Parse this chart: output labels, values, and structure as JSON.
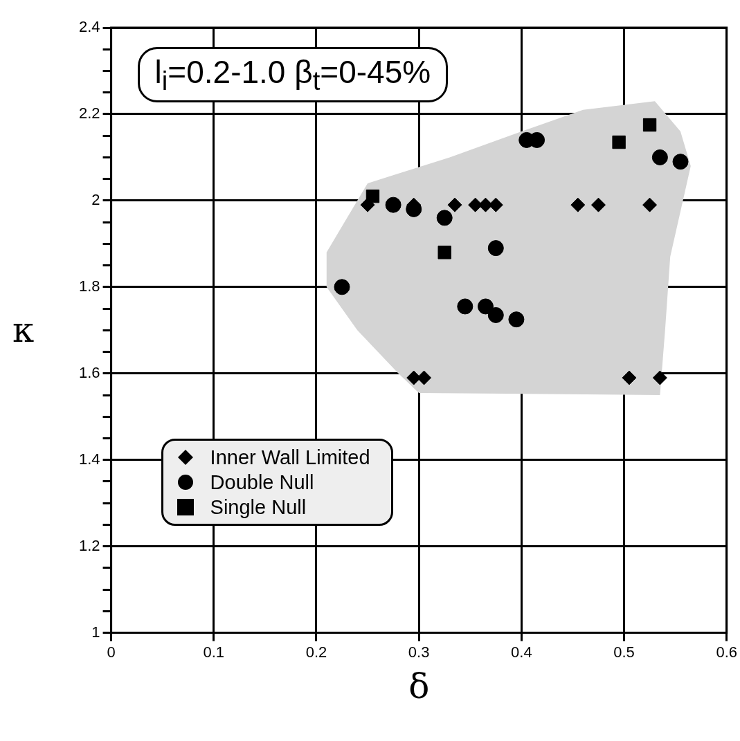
{
  "chart_data": {
    "type": "scatter",
    "title": "l$_{i}$=0.2-1.0  β$_{t}$=0-45%",
    "xlabel": "δ",
    "ylabel": "κ",
    "xlim": [
      0,
      0.6
    ],
    "xticks": [
      0,
      0.1,
      0.2,
      0.3,
      0.4,
      0.5,
      0.6
    ],
    "ylim": [
      1.0,
      2.4
    ],
    "yticks": [
      1.0,
      {
        "value": 1.05,
        "label": null
      },
      {
        "value": 1.1,
        "label": null
      },
      {
        "value": 1.15,
        "label": null
      },
      1.2,
      {
        "value": 1.25,
        "label": null
      },
      {
        "value": 1.3,
        "label": null
      },
      {
        "value": 1.35,
        "label": null
      },
      1.4,
      {
        "value": 1.45,
        "label": null
      },
      {
        "value": 1.5,
        "label": null
      },
      {
        "value": 1.55,
        "label": null
      },
      1.6,
      {
        "value": 1.65,
        "label": null
      },
      {
        "value": 1.7,
        "label": null
      },
      {
        "value": 1.75,
        "label": null
      },
      1.8,
      {
        "value": 1.85,
        "label": null
      },
      {
        "value": 1.9,
        "label": null
      },
      {
        "value": 1.95,
        "label": null
      },
      2.0,
      {
        "value": 2.05,
        "label": null
      },
      {
        "value": 2.1,
        "label": null
      },
      {
        "value": 2.15,
        "label": null
      },
      2.2,
      {
        "value": 2.25,
        "label": null
      },
      {
        "value": 2.3,
        "label": null
      },
      {
        "value": 2.35,
        "label": null
      },
      2.4
    ],
    "grid": true,
    "legend": "bottom left",
    "series": [
      {
        "type": "area",
        "color": "#d4d4d4",
        "x": [
          0.25,
          0.33,
          0.4,
          0.46,
          0.53,
          0.555,
          0.565,
          0.545,
          0.54,
          0.535,
          0.3,
          0.28,
          0.24,
          0.21,
          0.21,
          0.23
        ],
        "values": [
          2.04,
          2.1,
          2.16,
          2.21,
          2.23,
          2.16,
          2.08,
          1.87,
          1.7,
          1.55,
          1.555,
          1.6,
          1.7,
          1.8,
          1.88,
          1.96
        ]
      },
      {
        "name": "Inner Wall Limited",
        "color": "#000000",
        "marker": "diamond",
        "x": [
          0.25,
          0.295,
          0.335,
          0.355,
          0.365,
          0.375,
          0.455,
          0.475,
          0.525,
          0.295,
          0.305,
          0.505,
          0.535
        ],
        "values": [
          1.99,
          1.99,
          1.99,
          1.99,
          1.99,
          1.99,
          1.99,
          1.99,
          1.99,
          1.59,
          1.59,
          1.59,
          1.59
        ]
      },
      {
        "name": "Double Null",
        "color": "#000000",
        "marker": "circle",
        "x": [
          0.275,
          0.295,
          0.325,
          0.375,
          0.225,
          0.345,
          0.365,
          0.375,
          0.395,
          0.405,
          0.415,
          0.535,
          0.555
        ],
        "values": [
          1.99,
          1.98,
          1.96,
          1.89,
          1.8,
          1.755,
          1.755,
          1.735,
          1.725,
          2.14,
          2.14,
          2.1,
          2.09
        ]
      },
      {
        "name": "Single Null",
        "color": "#000000",
        "marker": "square",
        "x": [
          0.255,
          0.325,
          0.495,
          0.525
        ],
        "values": [
          2.01,
          1.88,
          2.135,
          2.175
        ]
      }
    ]
  }
}
